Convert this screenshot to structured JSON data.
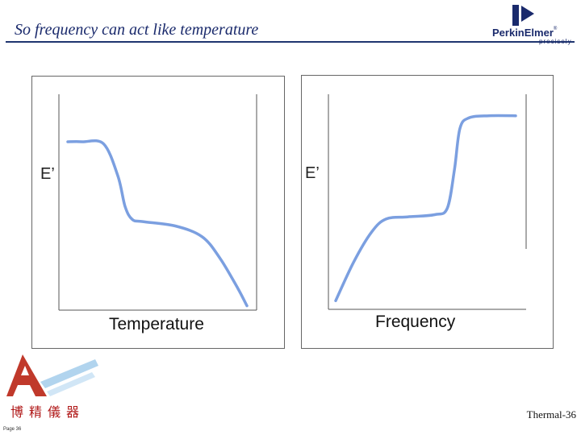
{
  "slide": {
    "title": "So frequency can act like temperature",
    "slide_number": "Thermal-36",
    "page_number": "Page 36"
  },
  "header_logo": {
    "brand": "PerkinElmer",
    "registered_mark": "®",
    "tagline": "precisely",
    "icon": "perkinelmer-p-icon"
  },
  "footer_logo": {
    "company_name": "博精儀器",
    "icon": "company-a-logo-icon"
  },
  "colors": {
    "title": "#1a2a6c",
    "rule": "#1f3570",
    "curve": "#7b9fe0",
    "company_red": "#b01818"
  },
  "chart_data": [
    {
      "type": "line",
      "ylabel": "E’",
      "xlabel": "Temperature",
      "note": "schematic, no numeric axes",
      "x": [
        0,
        0.08,
        0.2,
        0.28,
        0.32,
        0.36,
        0.42,
        0.6,
        0.75,
        0.85,
        0.95,
        1.0
      ],
      "y": [
        0.78,
        0.78,
        0.77,
        0.62,
        0.48,
        0.42,
        0.41,
        0.39,
        0.34,
        0.24,
        0.1,
        0.02
      ]
    },
    {
      "type": "line",
      "ylabel": "E’",
      "xlabel": "Frequency",
      "note": "schematic, no numeric axes",
      "x": [
        0,
        0.1,
        0.2,
        0.28,
        0.4,
        0.55,
        0.62,
        0.66,
        0.69,
        0.74,
        0.85,
        1.0
      ],
      "y": [
        0.04,
        0.22,
        0.36,
        0.42,
        0.43,
        0.44,
        0.47,
        0.65,
        0.84,
        0.89,
        0.9,
        0.9
      ]
    }
  ]
}
